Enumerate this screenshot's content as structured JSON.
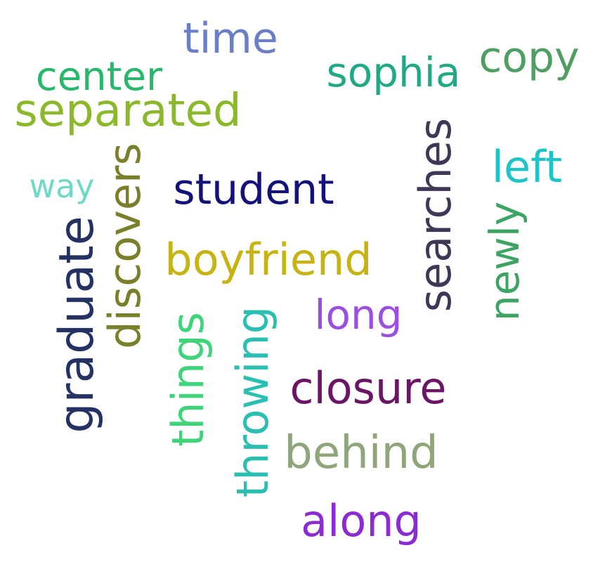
{
  "words": [
    {
      "text": "time",
      "color": "#6b7fc6"
    },
    {
      "text": "center",
      "color": "#27b86b"
    },
    {
      "text": "sophia",
      "color": "#21a884"
    },
    {
      "text": "copy",
      "color": "#4f9e62"
    },
    {
      "text": "separated",
      "color": "#8bb92b"
    },
    {
      "text": "way",
      "color": "#6fd9c8"
    },
    {
      "text": "discovers",
      "color": "#7a7f2a"
    },
    {
      "text": "student",
      "color": "#13127a"
    },
    {
      "text": "searches",
      "color": "#3f3658"
    },
    {
      "text": "left",
      "color": "#1fc4c8"
    },
    {
      "text": "newly",
      "color": "#3da464"
    },
    {
      "text": "graduate",
      "color": "#233263"
    },
    {
      "text": "boyfriend",
      "color": "#c7b314"
    },
    {
      "text": "long",
      "color": "#9a4fe0"
    },
    {
      "text": "things",
      "color": "#3fd47a"
    },
    {
      "text": "throwing",
      "color": "#2bbfb2"
    },
    {
      "text": "closure",
      "color": "#6a1566"
    },
    {
      "text": "behind",
      "color": "#8ea67a"
    },
    {
      "text": "along",
      "color": "#8b2bd1"
    }
  ]
}
